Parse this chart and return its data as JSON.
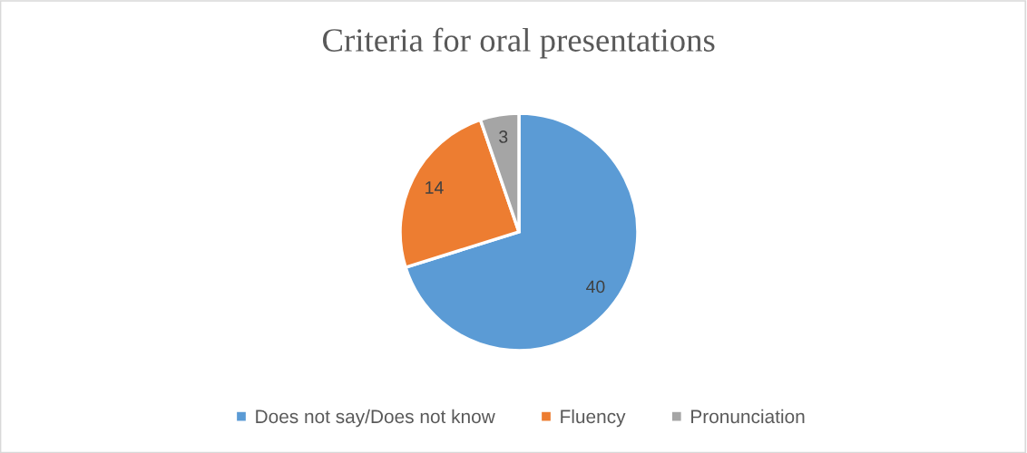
{
  "chart_data": {
    "type": "pie",
    "title": "Criteria for oral presentations",
    "categories": [
      "Does not say/Does not know",
      "Fluency",
      "Pronunciation"
    ],
    "values": [
      40,
      14,
      3
    ],
    "colors": [
      "#5b9bd5",
      "#ed7d31",
      "#a5a5a5"
    ],
    "data_labels": true,
    "legend": "bottom"
  }
}
